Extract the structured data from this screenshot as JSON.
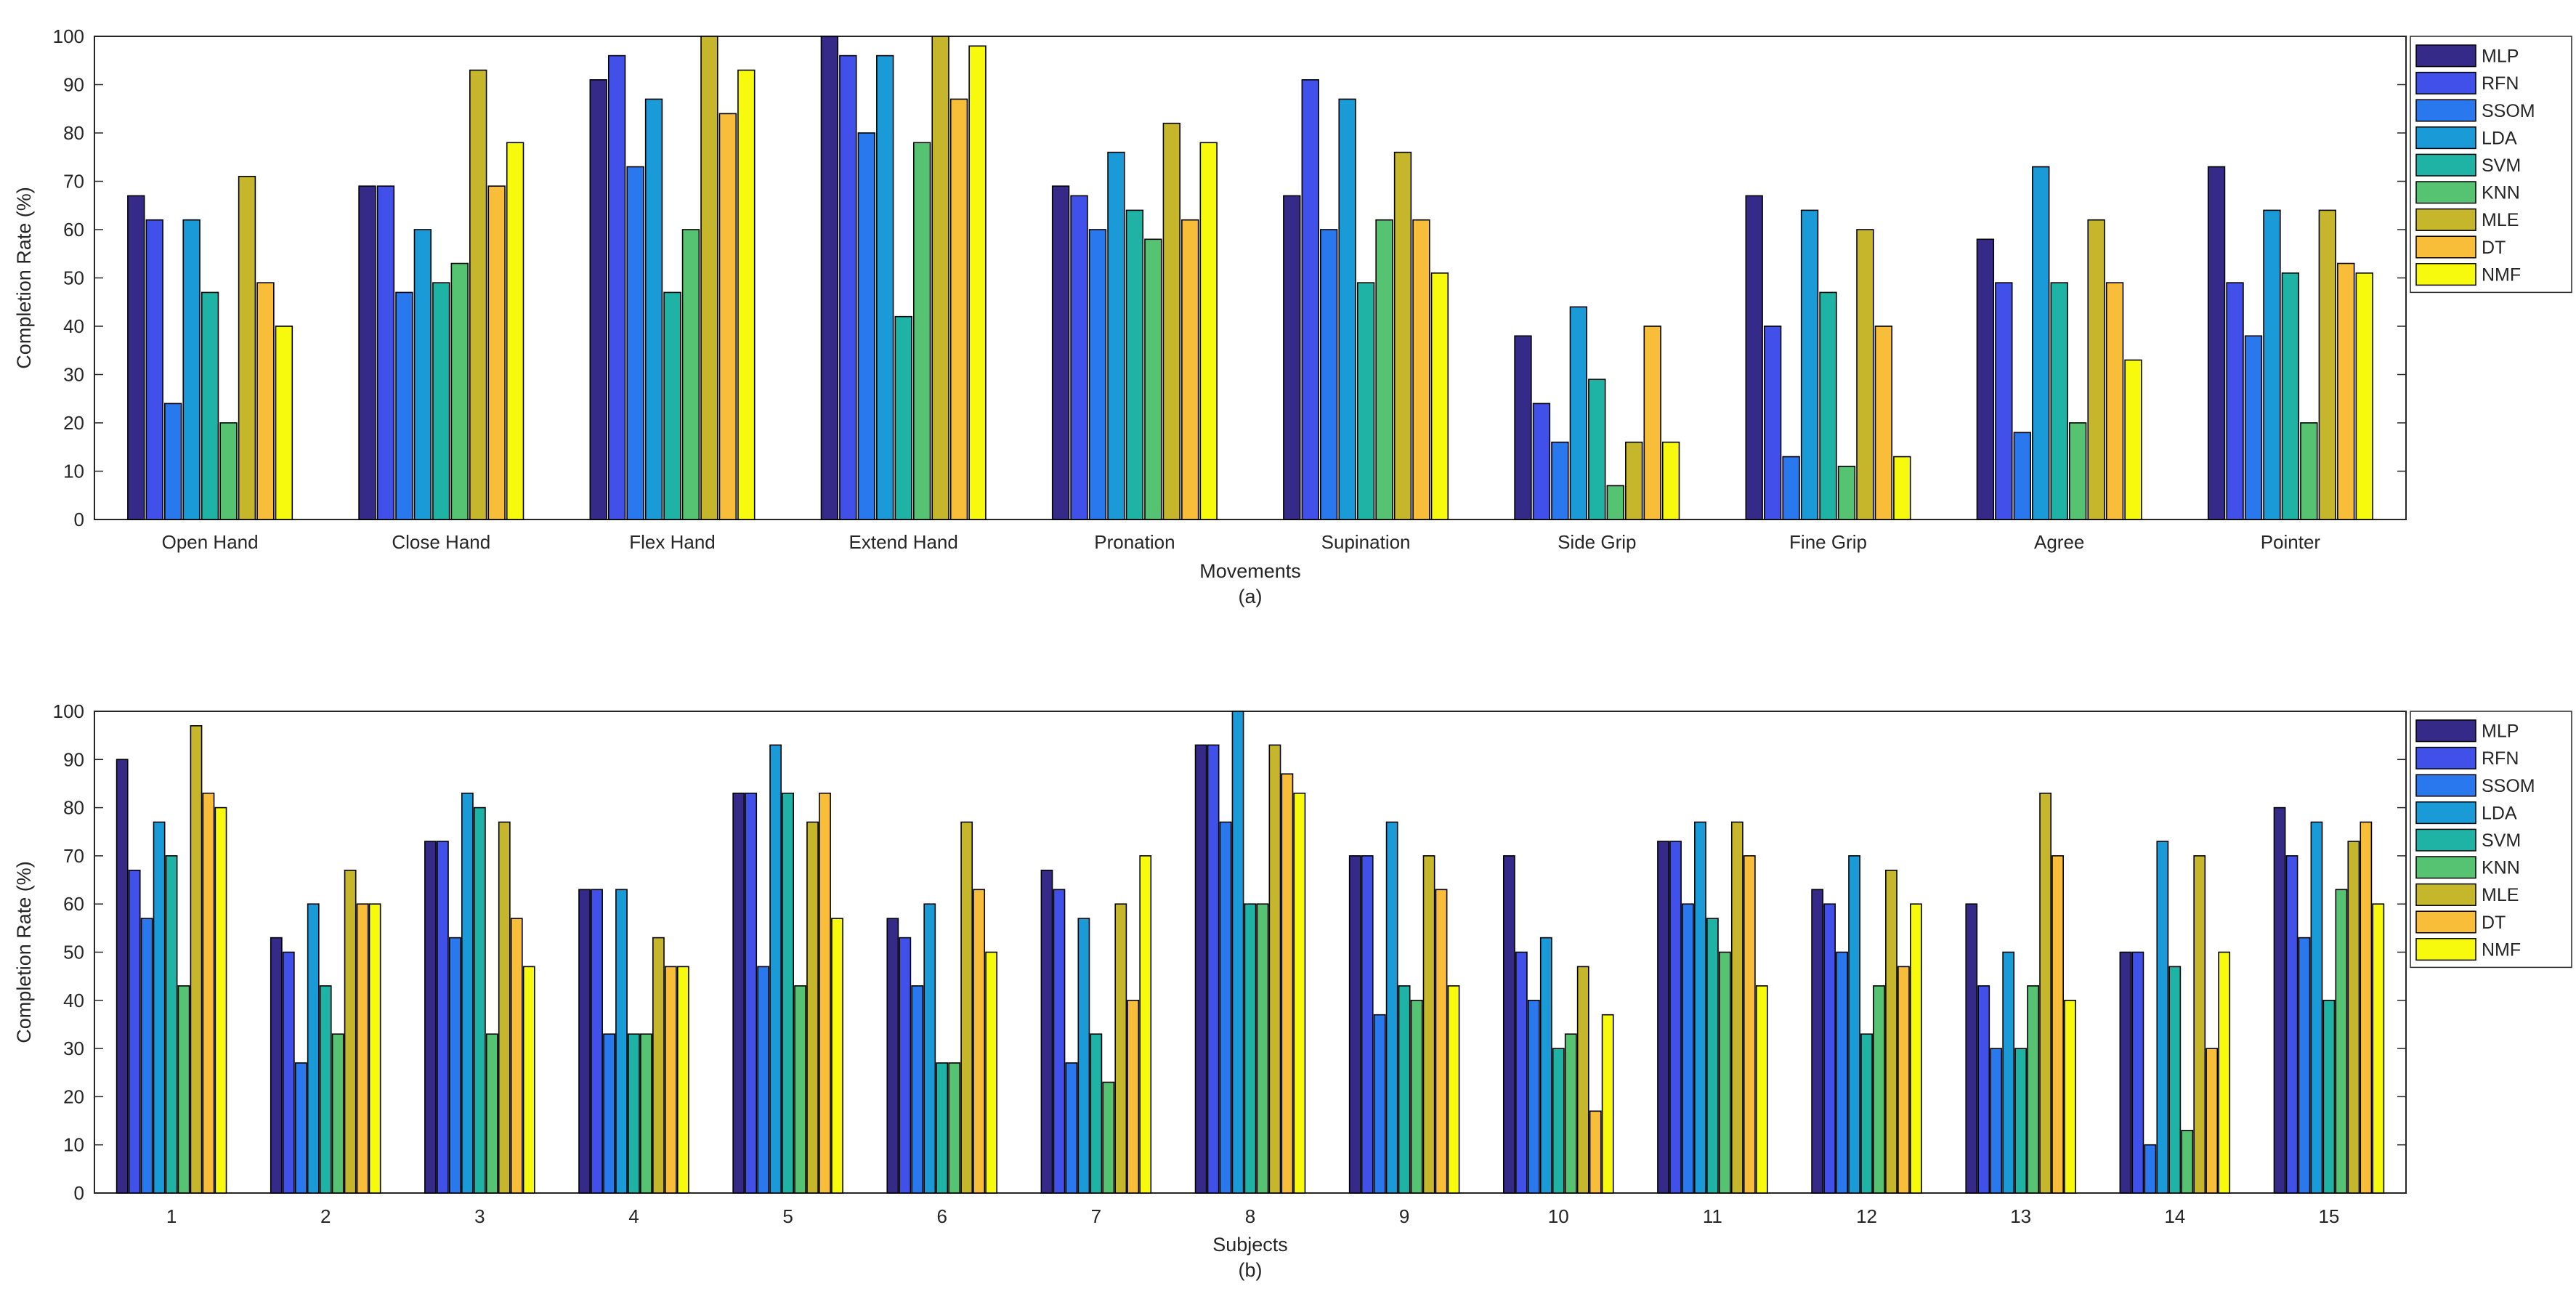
{
  "colors": {
    "MLP": "#352a87",
    "RFN": "#4150e8",
    "SSOM": "#2a78ee",
    "LDA": "#1a9ad6",
    "SVM": "#1fb3a6",
    "KNN": "#56c373",
    "MLE": "#c6b62c",
    "DT": "#f9be39",
    "NMF": "#f8fa0d"
  },
  "chart_data": [
    {
      "type": "bar",
      "title": "",
      "caption": "(a)",
      "xlabel": "Movements",
      "ylabel": "Completion Rate (%)",
      "ylim": [
        0,
        100
      ],
      "yticks": [
        "0",
        "10",
        "20",
        "30",
        "40",
        "50",
        "60",
        "70",
        "80",
        "90",
        "100"
      ],
      "legend_position": "outside-right",
      "categories": [
        "Open Hand",
        "Close Hand",
        "Flex Hand",
        "Extend Hand",
        "Pronation",
        "Supination",
        "Side Grip",
        "Fine Grip",
        "Agree",
        "Pointer"
      ],
      "series": [
        {
          "name": "MLP",
          "values": [
            67,
            69,
            91,
            100,
            69,
            67,
            38,
            67,
            58,
            73
          ]
        },
        {
          "name": "RFN",
          "values": [
            62,
            69,
            96,
            96,
            67,
            91,
            24,
            40,
            49,
            49
          ]
        },
        {
          "name": "SSOM",
          "values": [
            24,
            47,
            73,
            80,
            60,
            60,
            16,
            13,
            18,
            38
          ]
        },
        {
          "name": "LDA",
          "values": [
            62,
            60,
            87,
            96,
            76,
            87,
            44,
            64,
            73,
            64
          ]
        },
        {
          "name": "SVM",
          "values": [
            47,
            49,
            47,
            42,
            64,
            49,
            29,
            47,
            49,
            51
          ]
        },
        {
          "name": "KNN",
          "values": [
            20,
            53,
            60,
            78,
            58,
            62,
            7,
            11,
            20,
            20
          ]
        },
        {
          "name": "MLE",
          "values": [
            71,
            93,
            100,
            100,
            82,
            76,
            16,
            60,
            62,
            64
          ]
        },
        {
          "name": "DT",
          "values": [
            49,
            69,
            84,
            87,
            62,
            62,
            40,
            40,
            49,
            53
          ]
        },
        {
          "name": "NMF",
          "values": [
            40,
            78,
            93,
            98,
            78,
            51,
            16,
            13,
            33,
            51
          ]
        }
      ]
    },
    {
      "type": "bar",
      "title": "",
      "caption": "(b)",
      "xlabel": "Subjects",
      "ylabel": "Completion Rate (%)",
      "ylim": [
        0,
        100
      ],
      "yticks": [
        "0",
        "10",
        "20",
        "30",
        "40",
        "50",
        "60",
        "70",
        "80",
        "90",
        "100"
      ],
      "legend_position": "outside-right",
      "categories": [
        "1",
        "2",
        "3",
        "4",
        "5",
        "6",
        "7",
        "8",
        "9",
        "10",
        "11",
        "12",
        "13",
        "14",
        "15"
      ],
      "series": [
        {
          "name": "MLP",
          "values": [
            90,
            53,
            73,
            63,
            83,
            57,
            67,
            93,
            70,
            70,
            73,
            63,
            60,
            50,
            80
          ]
        },
        {
          "name": "RFN",
          "values": [
            67,
            50,
            73,
            63,
            83,
            53,
            63,
            93,
            70,
            50,
            73,
            60,
            43,
            50,
            70
          ]
        },
        {
          "name": "SSOM",
          "values": [
            57,
            27,
            53,
            33,
            47,
            43,
            27,
            77,
            37,
            40,
            60,
            50,
            30,
            10,
            53
          ]
        },
        {
          "name": "LDA",
          "values": [
            77,
            60,
            83,
            63,
            93,
            60,
            57,
            100,
            77,
            53,
            77,
            70,
            50,
            73,
            77
          ]
        },
        {
          "name": "SVM",
          "values": [
            70,
            43,
            80,
            33,
            83,
            27,
            33,
            60,
            43,
            30,
            57,
            33,
            30,
            47,
            40
          ]
        },
        {
          "name": "KNN",
          "values": [
            43,
            33,
            33,
            33,
            43,
            27,
            23,
            60,
            40,
            33,
            50,
            43,
            43,
            13,
            63
          ]
        },
        {
          "name": "MLE",
          "values": [
            97,
            67,
            77,
            53,
            77,
            77,
            60,
            93,
            70,
            47,
            77,
            67,
            83,
            70,
            73
          ]
        },
        {
          "name": "DT",
          "values": [
            83,
            60,
            57,
            47,
            83,
            63,
            40,
            87,
            63,
            17,
            70,
            47,
            70,
            30,
            77
          ]
        },
        {
          "name": "NMF",
          "values": [
            80,
            60,
            47,
            47,
            57,
            50,
            70,
            83,
            43,
            37,
            43,
            60,
            40,
            50,
            60
          ]
        }
      ]
    }
  ]
}
